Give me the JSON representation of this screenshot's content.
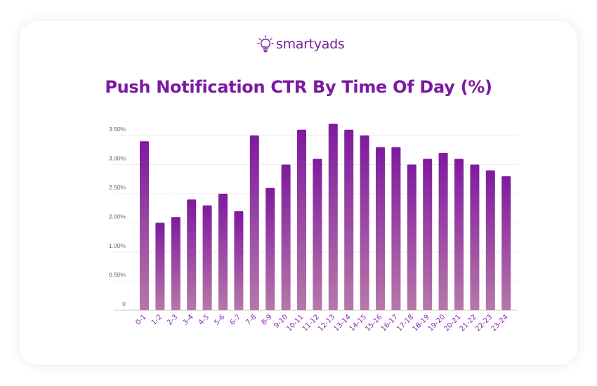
{
  "brand": {
    "name": "smartyads",
    "icon": "lightbulb-icon",
    "color": "#7a1fa0"
  },
  "chart_data": {
    "type": "bar",
    "title": "Push Notification CTR By Time Of Day (%)",
    "xlabel": "",
    "ylabel": "",
    "categories": [
      "0-1",
      "1-2",
      "2-3",
      "3-4",
      "4-5",
      "5-6",
      "6-7",
      "7-8",
      "8-9",
      "9-10",
      "10-11",
      "11-12",
      "12-13",
      "13-14",
      "14-15",
      "15-16",
      "16-17",
      "17-18",
      "18-19",
      "19-20",
      "20-21",
      "21-22",
      "22-23",
      "23-24"
    ],
    "values": [
      3.4,
      2.0,
      2.1,
      2.4,
      2.3,
      2.5,
      2.2,
      3.5,
      2.6,
      3.0,
      3.6,
      3.1,
      3.7,
      3.6,
      3.5,
      3.3,
      3.3,
      3.0,
      3.1,
      3.2,
      3.1,
      3.0,
      2.9,
      2.8
    ],
    "y_ticks": [
      {
        "value": 0,
        "label": "0"
      },
      {
        "value": 0.5,
        "label": "0.50%"
      },
      {
        "value": 1.0,
        "label": "1.00%"
      },
      {
        "value": 2.0,
        "label": "2.00%"
      },
      {
        "value": 2.5,
        "label": "2.50%"
      },
      {
        "value": 3.0,
        "label": "3.00%"
      },
      {
        "value": 3.5,
        "label": "3.50%"
      }
    ],
    "grid": true,
    "legend": "none",
    "colors": {
      "bar_top": "#7f1a9f",
      "bar_bottom": "#b678a8",
      "title": "#7a1aa0",
      "x_labels": "#8a2bb0"
    }
  }
}
